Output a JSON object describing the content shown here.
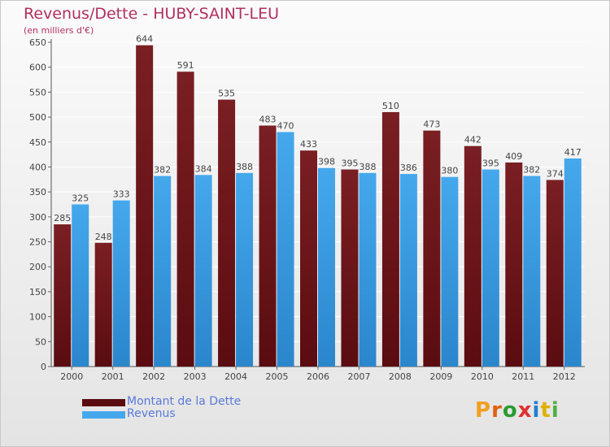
{
  "title": "Revenus/Dette - HUBY-SAINT-LEU",
  "subtitle": "(en milliers d'€)",
  "logo": {
    "text": "Proxiti"
  },
  "colors": {
    "debt": "#7a1f23",
    "debt_dark": "#5a0c10",
    "revenue": "#45a8ec",
    "revenue_dark": "#2b86cc",
    "grid": "#ffffff",
    "label_text": "#444444",
    "title_text": "#b03060"
  },
  "chart_data": {
    "type": "bar",
    "title": "Revenus/Dette - HUBY-SAINT-LEU",
    "ylabel": "(en milliers d'€)",
    "xlabel": "",
    "ylim": [
      0,
      650
    ],
    "yticks": [
      0,
      50,
      100,
      150,
      200,
      250,
      300,
      350,
      400,
      450,
      500,
      550,
      600,
      650
    ],
    "grid": true,
    "legend_position": "bottom-left",
    "categories": [
      "2000",
      "2001",
      "2002",
      "2003",
      "2004",
      "2005",
      "2006",
      "2007",
      "2008",
      "2009",
      "2010",
      "2011",
      "2012"
    ],
    "series": [
      {
        "name": "Montant de la Dette",
        "values": [
          285,
          248,
          644,
          591,
          535,
          483,
          433,
          395,
          510,
          473,
          442,
          409,
          374
        ]
      },
      {
        "name": "Revenus",
        "values": [
          325,
          333,
          382,
          384,
          388,
          470,
          398,
          388,
          386,
          380,
          395,
          382,
          417
        ]
      }
    ]
  }
}
